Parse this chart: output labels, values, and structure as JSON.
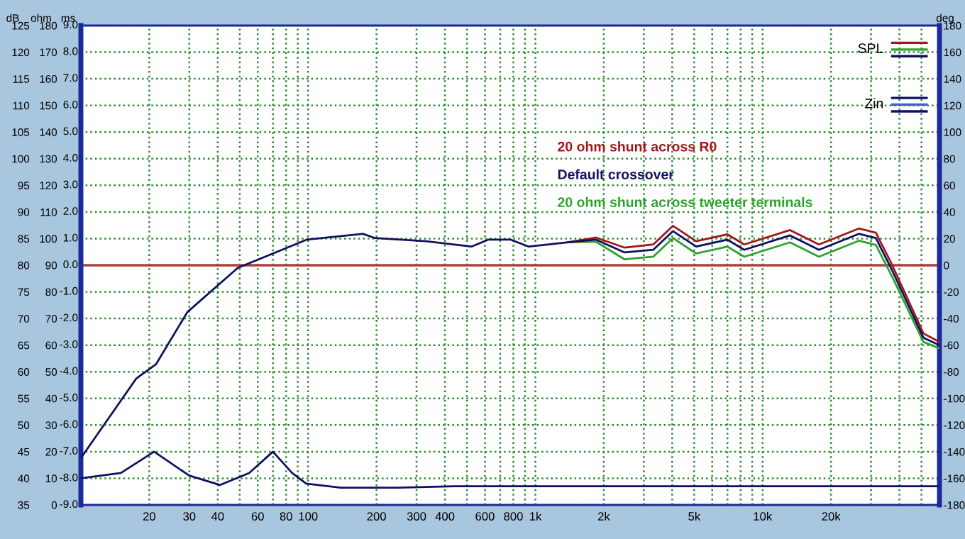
{
  "chart_data": {
    "type": "line",
    "ylabel": "dB",
    "y2label": "deg",
    "y3label": "ohm",
    "log": "x",
    "xlim": [
      10,
      60000
    ],
    "xticks": [
      {
        "value": 10,
        "label": null
      },
      {
        "value": 20,
        "label": "20"
      },
      {
        "value": 30,
        "label": "30"
      },
      {
        "value": 40,
        "label": "40"
      },
      {
        "value": 50,
        "label": null
      },
      {
        "value": 60,
        "label": "60"
      },
      {
        "value": 70,
        "label": null
      },
      {
        "value": 80,
        "label": "80"
      },
      {
        "value": 90,
        "label": null
      },
      {
        "value": 100,
        "label": "100"
      },
      {
        "value": 200,
        "label": "200"
      },
      {
        "value": 300,
        "label": "300"
      },
      {
        "value": 400,
        "label": "400"
      },
      {
        "value": 500,
        "label": null
      },
      {
        "value": 600,
        "label": "600"
      },
      {
        "value": 700,
        "label": null
      },
      {
        "value": 800,
        "label": "800"
      },
      {
        "value": 900,
        "label": null
      },
      {
        "value": 1000,
        "label": "1k"
      },
      {
        "value": 2000,
        "label": "2k"
      },
      {
        "value": 3000,
        "label": null
      },
      {
        "value": 4000,
        "label": null
      },
      {
        "value": 5000,
        "label": "5k"
      },
      {
        "value": 6000,
        "label": null
      },
      {
        "value": 7000,
        "label": null
      },
      {
        "value": 8000,
        "label": null
      },
      {
        "value": 9000,
        "label": null
      },
      {
        "value": 10000,
        "label": "10k"
      },
      {
        "value": 20000,
        "label": "20k"
      },
      {
        "value": 30000,
        "label": null
      },
      {
        "value": 40000,
        "label": null
      },
      {
        "value": 50000,
        "label": null
      }
    ],
    "ylim": [
      35,
      125
    ],
    "yticks": [
      35,
      40,
      45,
      50,
      55,
      60,
      65,
      70,
      75,
      80,
      85,
      90,
      95,
      100,
      105,
      110,
      115,
      120,
      125
    ],
    "y2lim": [
      -180,
      180
    ],
    "y2ticks": [
      -180,
      -160,
      -140,
      -120,
      -100,
      -80,
      -60,
      -40,
      -20,
      0,
      20,
      40,
      60,
      80,
      100,
      120,
      140,
      160,
      180
    ],
    "y3lim": [
      0,
      180
    ],
    "y3ticks": [
      0,
      10,
      20,
      30,
      40,
      50,
      60,
      70,
      80,
      90,
      100,
      110,
      120,
      130,
      140,
      150,
      160,
      170,
      180
    ],
    "grid": true,
    "ref_lines": [
      {
        "axis": "y",
        "value": 80,
        "color": "#b04040"
      }
    ],
    "annotations": [
      "SPL",
      "Zin",
      "ms",
      "9.0",
      "8.0",
      "7.0",
      "6.0",
      "5.0",
      "4.0",
      "3.0",
      "2.0",
      "1.0",
      "0.0",
      "-1.0",
      "-2.0",
      "-3.0",
      "-4.0",
      "-5.0",
      "-6.0",
      "-7.0",
      "-8.0",
      "-9.0"
    ],
    "series": [
      {
        "name": "20 ohm shunt across R0",
        "color": "#a01818",
        "x": [
          1390,
          1850,
          2470,
          3300,
          4030,
          5100,
          7000,
          8300,
          13200,
          17700,
          26500,
          31500,
          37000,
          51000,
          60000
        ],
        "values": [
          84.3,
          85.2,
          83.3,
          83.9,
          87.4,
          84.5,
          85.8,
          83.9,
          86.6,
          83.9,
          86.9,
          86.1,
          80.2,
          67.2,
          65.6
        ]
      },
      {
        "name": "20 ohm shunt across tweeter terminals",
        "color": "#30a030",
        "x": [
          1390,
          1850,
          2470,
          3300,
          4030,
          5100,
          7000,
          8300,
          13200,
          17700,
          26500,
          31500,
          37000,
          51000,
          60000
        ],
        "values": [
          84.3,
          84.4,
          81.1,
          81.6,
          85.1,
          82.2,
          83.5,
          81.6,
          84.3,
          81.6,
          84.6,
          83.8,
          78,
          65.6,
          64.4
        ]
      },
      {
        "name": "Default crossover",
        "color": "#101060",
        "x": [
          10,
          17.5,
          21.4,
          29.4,
          49,
          98.5,
          174,
          197,
          330,
          523,
          620,
          780,
          935,
          1390,
          1850,
          2470,
          3300,
          4030,
          5100,
          7000,
          8300,
          13200,
          17700,
          26500,
          31500,
          37000,
          51000,
          60000
        ],
        "values": [
          43.8,
          58.7,
          61.4,
          71.2,
          79.5,
          84.8,
          85.9,
          85.1,
          84.5,
          83.5,
          84.8,
          84.8,
          83.5,
          84.3,
          84.8,
          82.4,
          82.9,
          86.4,
          83.5,
          84.8,
          82.9,
          85.6,
          82.9,
          85.9,
          85.1,
          79.2,
          66.4,
          65
        ]
      },
      {
        "color": "#101060",
        "axis": "y3",
        "x": [
          10,
          15,
          21,
          30,
          41,
          55,
          70,
          85,
          98,
          139,
          250,
          440,
          800,
          1400,
          3000,
          6000,
          12000,
          25000,
          60000
        ],
        "values": [
          10,
          12,
          20,
          11,
          7.5,
          12,
          20,
          12,
          8,
          6.5,
          6.5,
          7,
          7,
          7,
          7,
          7,
          7,
          7,
          7
        ]
      }
    ]
  }
}
